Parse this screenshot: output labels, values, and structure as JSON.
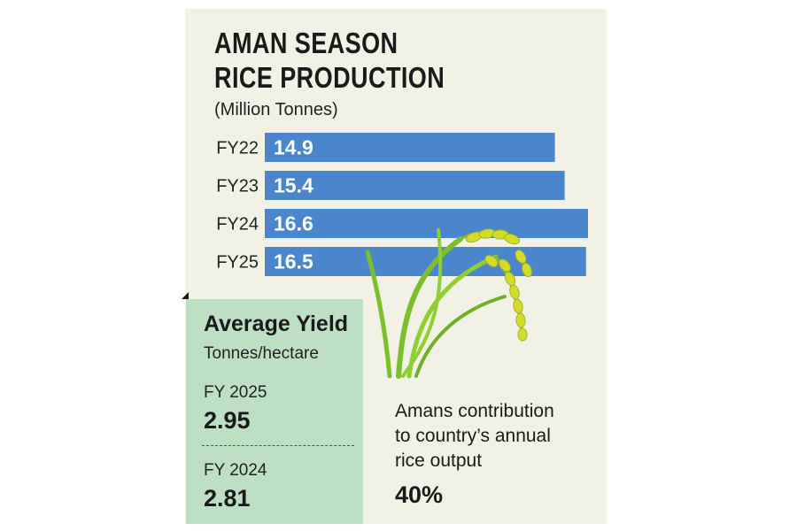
{
  "chart_data": {
    "type": "bar",
    "orientation": "horizontal",
    "title": "AMAN SEASON RICE PRODUCTION",
    "subtitle": "(Million Tonnes)",
    "categories": [
      "FY22",
      "FY23",
      "FY24",
      "FY25"
    ],
    "values": [
      14.9,
      15.4,
      16.6,
      16.5
    ],
    "value_labels": [
      "14.9",
      "15.4",
      "16.6",
      "16.5"
    ],
    "bar_color": "#4b86cc",
    "grid": false,
    "legend": "none"
  },
  "yield": {
    "title": "Average Yield",
    "unit": "Tonnes/hectare",
    "items": [
      {
        "year": "FY 2025",
        "value": "2.95"
      },
      {
        "year": "FY 2024",
        "value": "2.81"
      }
    ]
  },
  "contribution": {
    "lines": [
      "Amans contribution",
      "to country’s annual",
      "rice output"
    ],
    "value": "40%"
  },
  "illustration": {
    "icon": "rice-plant-icon",
    "stem_color": "#7dbf2a",
    "grain_color": "#d4dc2a"
  }
}
